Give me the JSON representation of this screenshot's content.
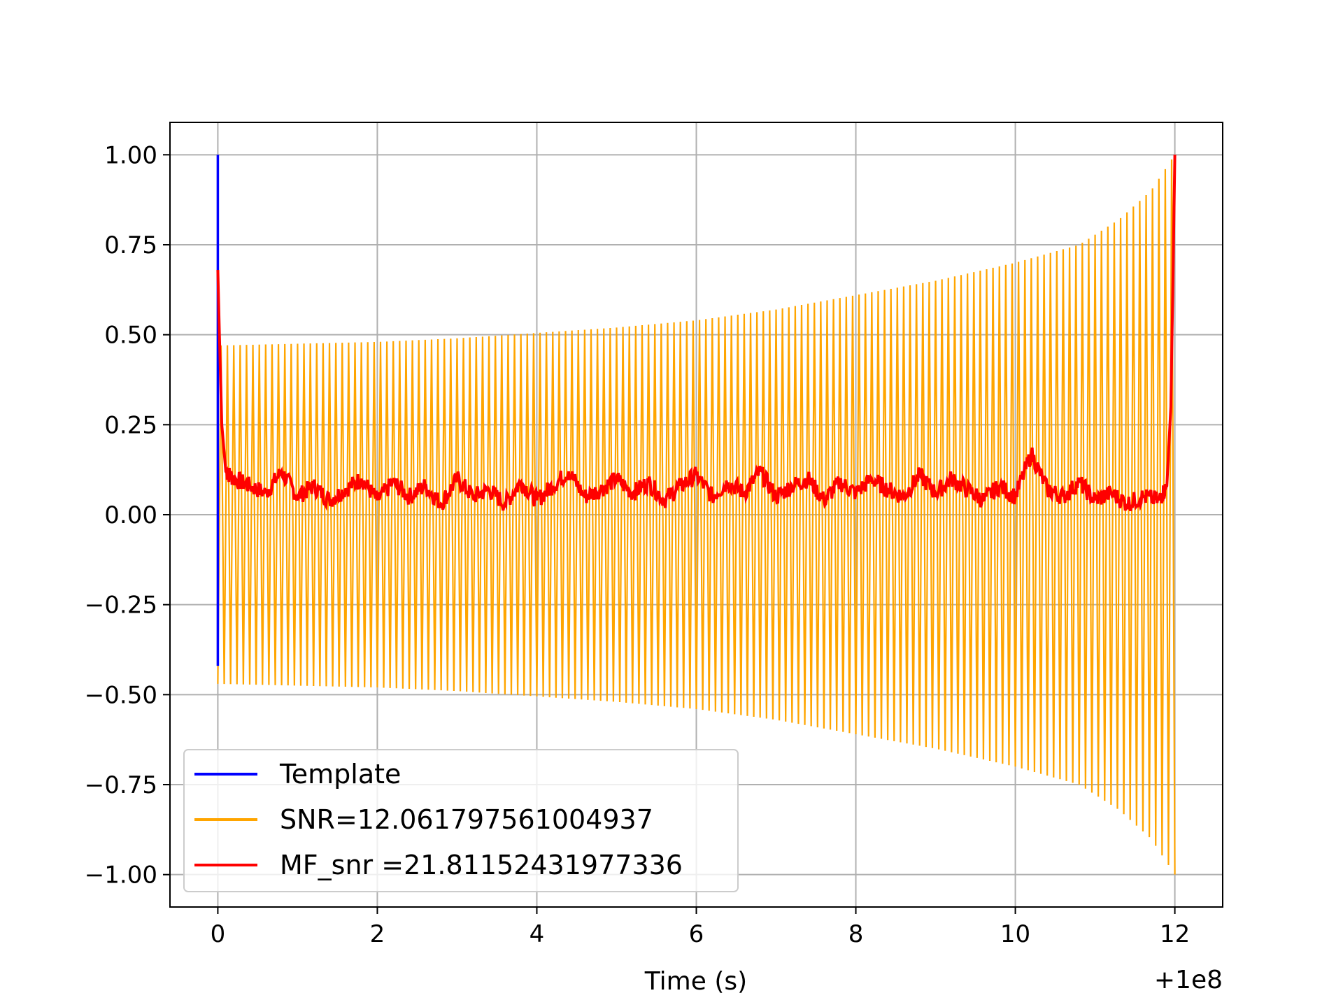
{
  "chart_data": {
    "type": "line",
    "title": "",
    "xlabel": "Time (s)",
    "ylabel": "",
    "x_offset_label": "+1e8",
    "xlim": [
      -0.6,
      12.6
    ],
    "ylim": [
      -1.09,
      1.09
    ],
    "x_ticks": [
      0,
      2,
      4,
      6,
      8,
      10,
      12
    ],
    "x_tick_labels": [
      "0",
      "2",
      "4",
      "6",
      "8",
      "10",
      "12"
    ],
    "y_ticks": [
      1.0,
      0.75,
      0.5,
      0.25,
      0.0,
      -0.25,
      -0.5,
      -0.75,
      -1.0
    ],
    "y_tick_labels": [
      "1.00",
      "0.75",
      "0.50",
      "0.25",
      "0.00",
      "−0.25",
      "−0.50",
      "−0.75",
      "−1.00"
    ],
    "grid": true,
    "legend_position": "lower-left",
    "series": [
      {
        "name": "Template",
        "color": "#0000ff",
        "description_points": [
          [
            0.0,
            -0.42
          ],
          [
            0.0,
            1.0
          ],
          [
            0.0,
            0.0
          ]
        ]
      },
      {
        "name": "SNR=12.061797561004937",
        "color": "#ffa500",
        "waveform": {
          "t_start": 0.0,
          "t_end": 12.0,
          "cycles": 150,
          "envelope_points": [
            [
              0.0,
              0.47
            ],
            [
              1.0,
              0.475
            ],
            [
              2.0,
              0.48
            ],
            [
              3.0,
              0.49
            ],
            [
              4.0,
              0.505
            ],
            [
              5.0,
              0.52
            ],
            [
              6.0,
              0.54
            ],
            [
              7.0,
              0.57
            ],
            [
              8.0,
              0.61
            ],
            [
              9.0,
              0.65
            ],
            [
              10.0,
              0.7
            ],
            [
              10.8,
              0.75
            ],
            [
              11.3,
              0.82
            ],
            [
              11.7,
              0.9
            ],
            [
              12.0,
              1.0
            ]
          ]
        }
      },
      {
        "name": "MF_snr =21.81152431977336",
        "color": "#ff0000",
        "points": [
          [
            0.0,
            0.68
          ],
          [
            0.02,
            0.5
          ],
          [
            0.05,
            0.25
          ],
          [
            0.1,
            0.12
          ],
          [
            0.2,
            0.1
          ],
          [
            0.4,
            0.08
          ],
          [
            0.6,
            0.06
          ],
          [
            0.8,
            0.12
          ],
          [
            1.0,
            0.05
          ],
          [
            1.2,
            0.08
          ],
          [
            1.4,
            0.04
          ],
          [
            1.6,
            0.07
          ],
          [
            1.8,
            0.1
          ],
          [
            2.0,
            0.04
          ],
          [
            2.2,
            0.09
          ],
          [
            2.4,
            0.05
          ],
          [
            2.6,
            0.08
          ],
          [
            2.8,
            0.03
          ],
          [
            3.0,
            0.1
          ],
          [
            3.2,
            0.05
          ],
          [
            3.4,
            0.07
          ],
          [
            3.6,
            0.03
          ],
          [
            3.8,
            0.09
          ],
          [
            4.0,
            0.04
          ],
          [
            4.2,
            0.08
          ],
          [
            4.4,
            0.12
          ],
          [
            4.6,
            0.05
          ],
          [
            4.8,
            0.07
          ],
          [
            5.0,
            0.1
          ],
          [
            5.2,
            0.06
          ],
          [
            5.4,
            0.09
          ],
          [
            5.6,
            0.04
          ],
          [
            5.8,
            0.08
          ],
          [
            6.0,
            0.11
          ],
          [
            6.2,
            0.05
          ],
          [
            6.4,
            0.09
          ],
          [
            6.6,
            0.06
          ],
          [
            6.8,
            0.12
          ],
          [
            7.0,
            0.05
          ],
          [
            7.2,
            0.08
          ],
          [
            7.4,
            0.1
          ],
          [
            7.6,
            0.04
          ],
          [
            7.8,
            0.09
          ],
          [
            8.0,
            0.06
          ],
          [
            8.2,
            0.1
          ],
          [
            8.4,
            0.07
          ],
          [
            8.6,
            0.05
          ],
          [
            8.8,
            0.11
          ],
          [
            9.0,
            0.06
          ],
          [
            9.2,
            0.1
          ],
          [
            9.4,
            0.07
          ],
          [
            9.6,
            0.04
          ],
          [
            9.8,
            0.08
          ],
          [
            10.0,
            0.05
          ],
          [
            10.2,
            0.17
          ],
          [
            10.4,
            0.07
          ],
          [
            10.6,
            0.05
          ],
          [
            10.8,
            0.09
          ],
          [
            11.0,
            0.04
          ],
          [
            11.2,
            0.06
          ],
          [
            11.4,
            0.03
          ],
          [
            11.6,
            0.05
          ],
          [
            11.8,
            0.04
          ],
          [
            11.9,
            0.08
          ],
          [
            11.95,
            0.3
          ],
          [
            11.98,
            0.7
          ],
          [
            12.0,
            1.0
          ]
        ]
      }
    ]
  }
}
